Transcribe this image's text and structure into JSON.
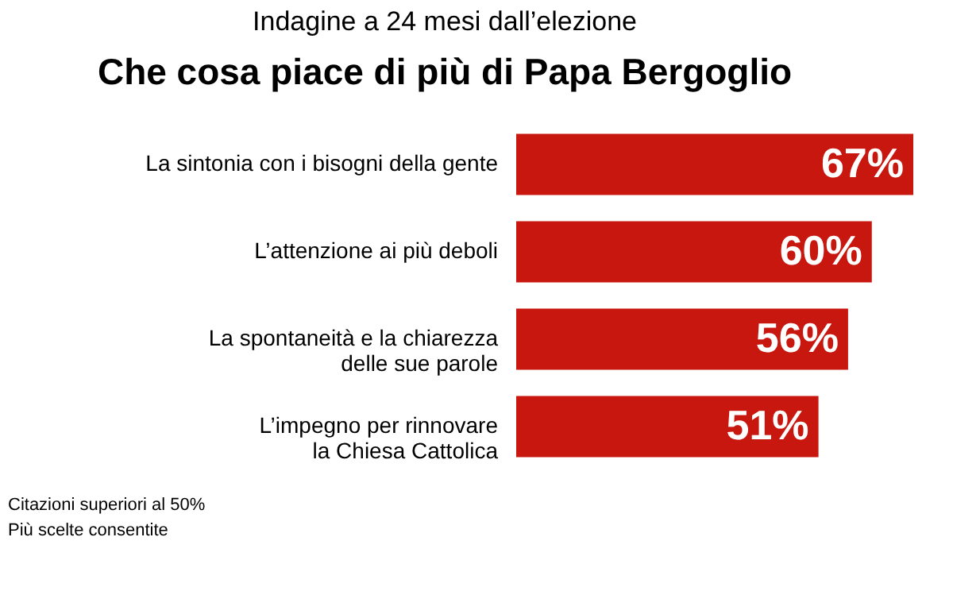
{
  "chart_data": {
    "type": "bar",
    "orientation": "horizontal",
    "subtitle": "Indagine a 24 mesi dall’elezione",
    "title": "Che cosa piace di più di Papa Bergoglio",
    "categories": [
      "La sintonia con i bisogni della gente",
      "L’attenzione ai più deboli",
      "La spontaneità e la chiarezza\ndelle sue parole",
      "L’impegno per rinnovare\nla Chiesa Cattolica"
    ],
    "values": [
      67,
      60,
      56,
      51
    ],
    "color": "#c8170f",
    "data_labels": true,
    "value_labels": [
      "67%",
      "60%",
      "56%",
      "51%"
    ],
    "annotations": [
      "Citazioni superiori al 50%",
      "Più scelte consentite"
    ]
  }
}
